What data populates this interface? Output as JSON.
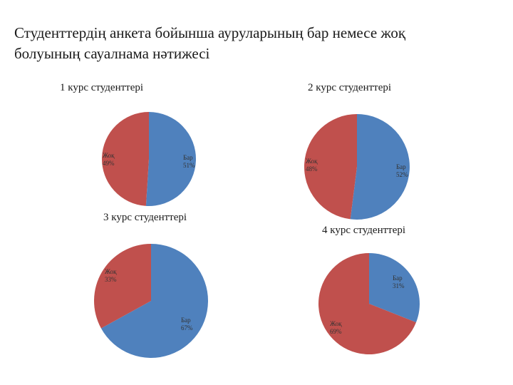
{
  "title": {
    "line1": "Студенттердің  анкета бойынша ауруларының бар немесе жоқ",
    "line2": "болуының сауалнама нәтижесі"
  },
  "colors": {
    "bar": "#4f81bd",
    "jok": "#c0504d"
  },
  "chart_data": [
    {
      "type": "pie",
      "title": "1 курс студенттері",
      "categories": [
        "Бар",
        "Жоқ"
      ],
      "values": [
        51,
        49
      ],
      "labels": [
        {
          "name": "Бар",
          "pct": "51%"
        },
        {
          "name": "Жоқ",
          "pct": "49%"
        }
      ]
    },
    {
      "type": "pie",
      "title": "2 курс студенттері",
      "categories": [
        "Бар",
        "Жоқ"
      ],
      "values": [
        52,
        48
      ],
      "labels": [
        {
          "name": "Бар",
          "pct": "52%"
        },
        {
          "name": "Жоқ",
          "pct": "48%"
        }
      ]
    },
    {
      "type": "pie",
      "title": "3 курс студенттері",
      "categories": [
        "Бар",
        "Жоқ"
      ],
      "values": [
        67,
        33
      ],
      "labels": [
        {
          "name": "Бар",
          "pct": "67%"
        },
        {
          "name": "Жоқ",
          "pct": "33%"
        }
      ]
    },
    {
      "type": "pie",
      "title": "4 курс студенттері",
      "categories": [
        "Бар",
        "Жоқ"
      ],
      "values": [
        31,
        69
      ],
      "labels": [
        {
          "name": "Бар",
          "pct": "31%"
        },
        {
          "name": "Жоқ",
          "pct": "69%"
        }
      ]
    }
  ]
}
